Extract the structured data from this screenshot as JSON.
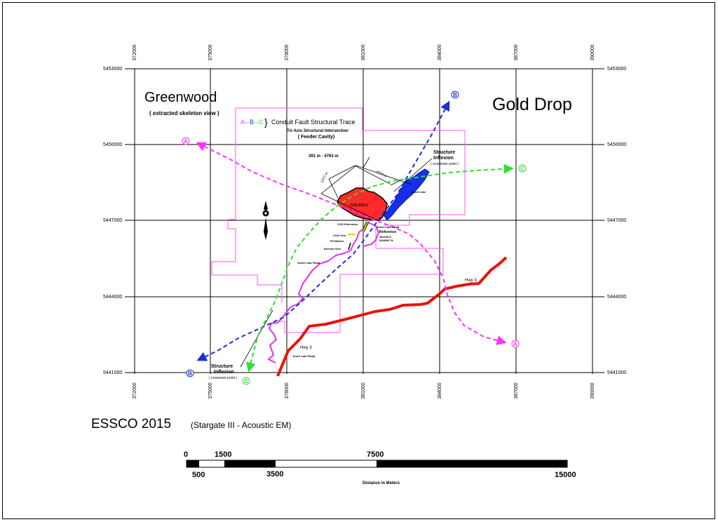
{
  "header": {
    "place_left": "Greenwood",
    "place_left_sub": "( extracted skeleton view )",
    "place_right": "Gold Drop"
  },
  "grid": {
    "eastings": [
      "372000",
      "375000",
      "378000",
      "381000",
      "384000",
      "387000",
      "390000"
    ],
    "northings": [
      "5453000",
      "5450000",
      "5447000",
      "5444000",
      "5441000"
    ]
  },
  "legend": {
    "letter_a": "A",
    "letter_b": "B",
    "letter_c": "C",
    "dash": "–",
    "brace": "}",
    "text": "Conduit Fault Structural Trace",
    "tri_axis_1": "Tri-Axis Structural Intersection",
    "tri_axis_2": "( Feeder Cavity)"
  },
  "dimensions": {
    "span": "391 m - 4763 m",
    "diag_1": "1377 m",
    "diag_2": "1634 m"
  },
  "labels": {
    "inflexion_top_1": "Structure",
    "inflexion_top_2": "Inflexion",
    "inflexion_top_3": "( crossover point )",
    "inflexion_bottom_1": "Structure",
    "inflexion_bottom_2": "Inflexion",
    "inflexion_bottom_3": "( crossover point )",
    "jewel_lake": "Jewel Lake",
    "target": "COD-00D-1",
    "cod_extension": "COD Extension",
    "jewel_lake_road_top": "Jewel Lake Road",
    "reference": "Reference",
    "ref_e": "381190 E",
    "ref_n": "5446587 N",
    "cod_vein": "COD Vein",
    "meters_700": "700 Meters",
    "enerest_vein": "Enerest Vein",
    "jewel_lake_road_mid": "Jewel Lake Road",
    "jewel_lake_road_bottom": "Jewel Lake Road",
    "hwy_top": "Hwy 3",
    "hwy_bottom": "Hwy 3"
  },
  "markers": {
    "a_start": "A",
    "a_end": "A",
    "b_start": "B",
    "b_end": "B",
    "c_start": "C",
    "c_end": "C"
  },
  "colors": {
    "trace_a": "#ff33ff",
    "trace_b": "#1a2fd6",
    "trace_c": "#2fe02f",
    "claims": "#ff55ff",
    "road": "#e830e8",
    "highway": "#e8140c",
    "target": "#ff2a2a",
    "lake": "#1530e8",
    "grid": "#000000"
  },
  "report": {
    "title": "ESSCO 2015",
    "subtitle": "(Stargate III - Acoustic EM)"
  },
  "scalebar": {
    "top_labels": [
      "0",
      "1500",
      "7500"
    ],
    "bottom_labels": [
      "500",
      "3500",
      "15000"
    ],
    "caption": "Distance in Meters"
  }
}
